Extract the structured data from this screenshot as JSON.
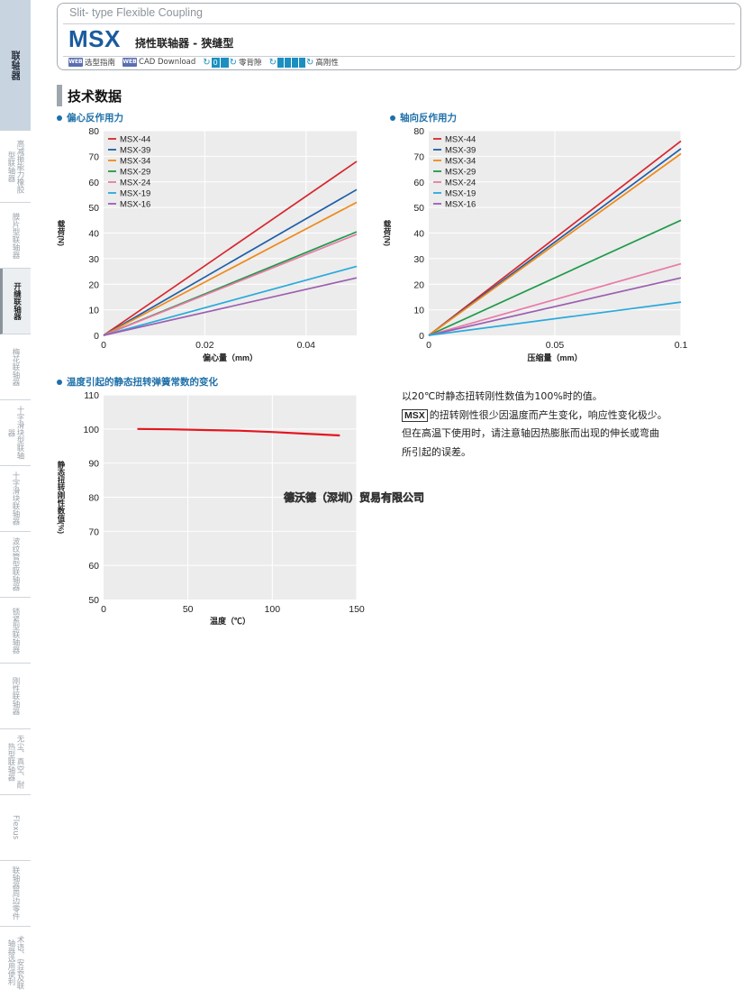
{
  "sidebar": {
    "items": [
      {
        "label": "联轴器",
        "kind": "main"
      },
      {
        "label": "高减振能力橡胶型联轴器",
        "kind": "normal"
      },
      {
        "label": "膜片型联轴器",
        "kind": "normal"
      },
      {
        "label": "开缝联轴器",
        "kind": "active"
      },
      {
        "label": "梅花联轴器",
        "kind": "normal"
      },
      {
        "label": "十字滑块型联轴器",
        "kind": "normal"
      },
      {
        "label": "十字滑块联轴器",
        "kind": "normal"
      },
      {
        "label": "波纹管型联轴器",
        "kind": "normal"
      },
      {
        "label": "锁紧型联轴器",
        "kind": "normal"
      },
      {
        "label": "刚性联轴器",
        "kind": "normal"
      },
      {
        "label": "无尘、真空、耐热型联轴器",
        "kind": "normal"
      },
      {
        "label": "Flexus",
        "kind": "normal"
      },
      {
        "label": "联轴器周边零件",
        "kind": "normal"
      },
      {
        "label": "术语、安装及联轴器选用便利",
        "kind": "normal"
      }
    ]
  },
  "header": {
    "subtitle": "Slit- type Flexible Coupling",
    "model": "MSX",
    "model_desc": "挠性联轴器 - 狭缝型",
    "links": [
      {
        "badge": "WEB",
        "label": "选型指南"
      },
      {
        "badge": "WEB",
        "label": "CAD Download"
      }
    ],
    "features": [
      {
        "icon": "zero-backlash-icon",
        "glyph": "0",
        "label": "零背隙"
      },
      {
        "icon": "high-rigidity-icon",
        "glyph": "",
        "label": "高刚性"
      }
    ]
  },
  "section": {
    "title": "技术数据"
  },
  "charts_text": {
    "eccentric_title": "偏心反作用力",
    "axial_title": "轴向反作用力",
    "temp_title": "温度引起的静态扭转弹簧常数的变化"
  },
  "note": {
    "line1": "以20℃时静态扭转刚性数值为100%时的值。",
    "tag": "MSX",
    "line2": "的扭转刚性很少因温度而产生变化，响应性变化极少。",
    "line3": "但在高温下使用时，请注意轴因热膨胀而出现的伸长或弯曲",
    "line4": "所引起的误差。"
  },
  "watermark": "德沃德（深圳）贸易有限公司",
  "series_colors": {
    "MSX-44": "#d7262e",
    "MSX-39": "#1f5ea8",
    "MSX-34": "#ee8a1a",
    "MSX-29": "#1f9a4a",
    "MSX-24": "#e87aa6",
    "MSX-19": "#29a9dc",
    "MSX-16": "#9b5fb0"
  },
  "chart_data": [
    {
      "type": "line",
      "title": "偏心反作用力",
      "xlabel": "偏心量（mm）",
      "ylabel": "载荷(N)",
      "xlim": [
        0,
        0.05
      ],
      "ylim": [
        0,
        80
      ],
      "xticks": [
        0,
        0.02,
        0.04
      ],
      "xtick_labels": [
        "0",
        "0.02",
        "0.04"
      ],
      "yticks": [
        0,
        10,
        20,
        30,
        40,
        50,
        60,
        70,
        80
      ],
      "legend": "top-left",
      "grid": true,
      "series": [
        {
          "name": "MSX-44",
          "x": [
            0,
            0.05
          ],
          "y": [
            0,
            68
          ]
        },
        {
          "name": "MSX-39",
          "x": [
            0,
            0.05
          ],
          "y": [
            0,
            57
          ]
        },
        {
          "name": "MSX-34",
          "x": [
            0,
            0.05
          ],
          "y": [
            0,
            52
          ]
        },
        {
          "name": "MSX-29",
          "x": [
            0,
            0.05
          ],
          "y": [
            0,
            40.5
          ]
        },
        {
          "name": "MSX-24",
          "x": [
            0,
            0.05
          ],
          "y": [
            0,
            39.5
          ]
        },
        {
          "name": "MSX-19",
          "x": [
            0,
            0.05
          ],
          "y": [
            0,
            27
          ]
        },
        {
          "name": "MSX-16",
          "x": [
            0,
            0.05
          ],
          "y": [
            0,
            22.5
          ]
        }
      ]
    },
    {
      "type": "line",
      "title": "轴向反作用力",
      "xlabel": "压缩量（mm）",
      "ylabel": "载荷(N)",
      "xlim": [
        0,
        0.1
      ],
      "ylim": [
        0,
        80
      ],
      "xticks": [
        0,
        0.05,
        0.1
      ],
      "xtick_labels": [
        "0",
        "0.05",
        "0.1"
      ],
      "yticks": [
        0,
        10,
        20,
        30,
        40,
        50,
        60,
        70,
        80
      ],
      "legend": "top-left",
      "grid": true,
      "series": [
        {
          "name": "MSX-44",
          "x": [
            0,
            0.1
          ],
          "y": [
            0,
            76
          ]
        },
        {
          "name": "MSX-39",
          "x": [
            0,
            0.1
          ],
          "y": [
            0,
            73
          ]
        },
        {
          "name": "MSX-34",
          "x": [
            0,
            0.1
          ],
          "y": [
            0,
            71
          ]
        },
        {
          "name": "MSX-29",
          "x": [
            0,
            0.1
          ],
          "y": [
            0,
            45
          ]
        },
        {
          "name": "MSX-24",
          "x": [
            0,
            0.1
          ],
          "y": [
            0,
            28
          ]
        },
        {
          "name": "MSX-16",
          "x": [
            0,
            0.1
          ],
          "y": [
            0,
            22.5
          ]
        },
        {
          "name": "MSX-19",
          "x": [
            0,
            0.1
          ],
          "y": [
            0,
            13
          ]
        }
      ]
    },
    {
      "type": "line",
      "title": "温度引起的静态扭转弹簧常数的变化",
      "xlabel": "温度（℃）",
      "ylabel": "静态扭转刚性数值(%)",
      "xlim": [
        0,
        150
      ],
      "ylim": [
        50,
        110
      ],
      "xticks": [
        0,
        50,
        100,
        150
      ],
      "xtick_labels": [
        "0",
        "50",
        "100",
        "150"
      ],
      "yticks": [
        50,
        60,
        70,
        80,
        90,
        100,
        110
      ],
      "grid": true,
      "series": [
        {
          "x": [
            20,
            40,
            60,
            80,
            100,
            120,
            140
          ],
          "y": [
            100,
            99.9,
            99.7,
            99.5,
            99.1,
            98.6,
            98.1
          ],
          "color": "#e3161f"
        }
      ]
    }
  ]
}
